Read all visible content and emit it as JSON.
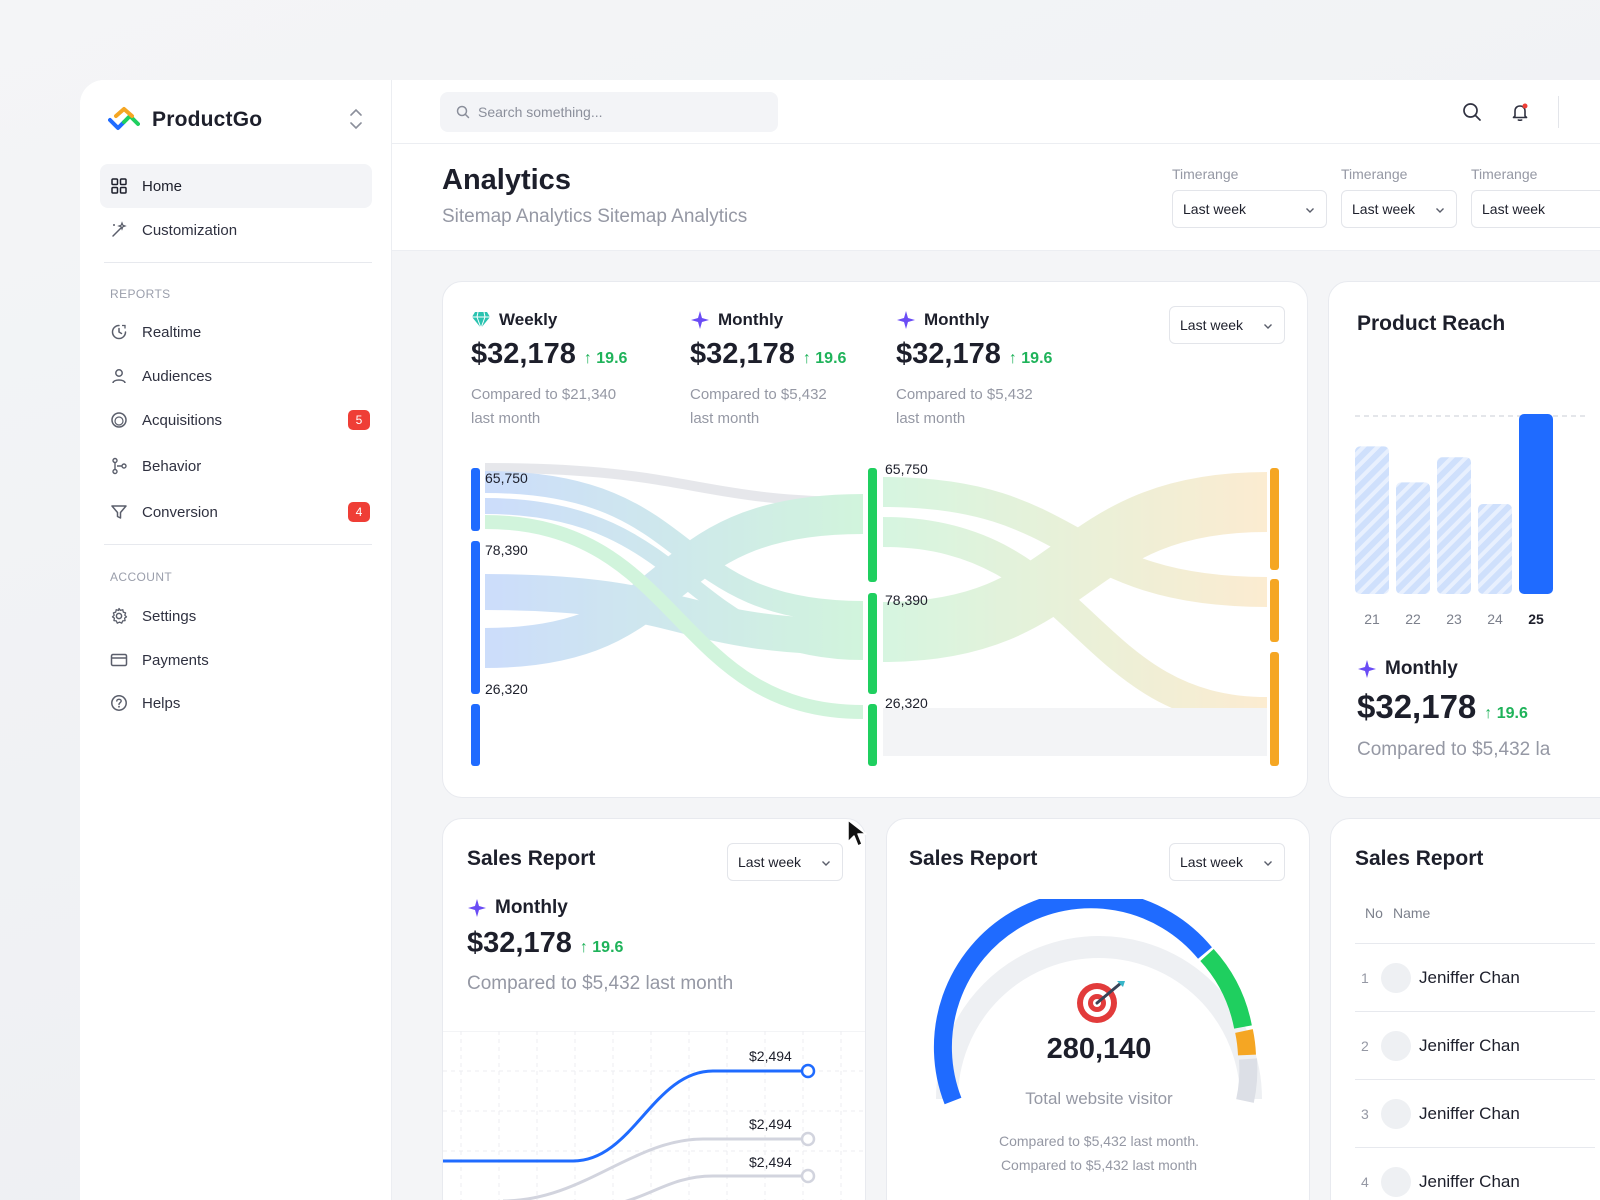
{
  "brand": {
    "name": "ProductGo"
  },
  "sidebar": {
    "main": [
      {
        "label": "Home",
        "active": true,
        "icon": "grid-icon"
      },
      {
        "label": "Customization",
        "icon": "magic-wand-icon"
      }
    ],
    "reports_label": "REPORTS",
    "reports": [
      {
        "label": "Realtime",
        "icon": "realtime-icon"
      },
      {
        "label": "Audiences",
        "icon": "user-icon"
      },
      {
        "label": "Acquisitions",
        "icon": "coin-icon",
        "badge": "5"
      },
      {
        "label": "Behavior",
        "icon": "flow-icon"
      },
      {
        "label": "Conversion",
        "icon": "funnel-icon",
        "badge": "4"
      }
    ],
    "account_label": "ACCOUNT",
    "account": [
      {
        "label": "Settings",
        "icon": "gear-icon"
      },
      {
        "label": "Payments",
        "icon": "card-icon"
      },
      {
        "label": "Helps",
        "icon": "help-icon"
      }
    ]
  },
  "search": {
    "placeholder": "Search something..."
  },
  "header": {
    "title": "Analytics",
    "subtitle": "Sitemap Analytics Sitemap Analytics",
    "timeranges": [
      {
        "label": "Timerange",
        "value": "Last week"
      },
      {
        "label": "Timerange",
        "value": "Last week"
      },
      {
        "label": "Timerange",
        "value": "Last week"
      }
    ]
  },
  "overview": {
    "select": "Last week",
    "kpis": [
      {
        "title": "Weekly",
        "value": "$32,178",
        "delta": "19.6",
        "compare1": "Compared to $21,340",
        "compare2": "last month",
        "icon": "diamond-icon"
      },
      {
        "title": "Monthly",
        "value": "$32,178",
        "delta": "19.6",
        "compare1": "Compared to $5,432",
        "compare2": "last month",
        "icon": "sparkle-icon"
      },
      {
        "title": "Monthly",
        "value": "$32,178",
        "delta": "19.6",
        "compare1": "Compared to $5,432",
        "compare2": "last month",
        "icon": "sparkle-icon"
      }
    ],
    "sankey_labels_left": [
      "65,750",
      "78,390",
      "26,320"
    ],
    "sankey_labels_mid": [
      "65,750",
      "78,390",
      "26,320"
    ]
  },
  "product_reach": {
    "title": "Product Reach",
    "kpi": {
      "title": "Monthly",
      "value": "$32,178",
      "delta": "19.6",
      "compare": "Compared to $5,432 la"
    }
  },
  "chart_data": [
    {
      "type": "bar",
      "categories": [
        "21",
        "22",
        "23",
        "24",
        "25"
      ],
      "values": [
        82,
        62,
        76,
        50,
        100
      ],
      "highlight": "25"
    },
    {
      "type": "line",
      "data_labels": [
        "$2,494",
        "$2,494",
        "$2,494"
      ]
    }
  ],
  "sales_report_1": {
    "title": "Sales Report",
    "select": "Last week",
    "kpi": {
      "title": "Monthly",
      "value": "$32,178",
      "delta": "19.6",
      "compare": "Compared to $5,432 last month"
    }
  },
  "sales_report_2": {
    "title": "Sales Report",
    "select": "Last week",
    "gauge_value": "280,140",
    "gauge_label": "Total website visitor",
    "compare1": "Compared to $5,432 last month.",
    "compare2": "Compared to $5,432 last month"
  },
  "sales_report_3": {
    "title": "Sales Report",
    "col_no": "No",
    "col_name": "Name",
    "rows": [
      {
        "no": "1",
        "name": "Jeniffer Chan"
      },
      {
        "no": "2",
        "name": "Jeniffer Chan"
      },
      {
        "no": "3",
        "name": "Jeniffer Chan"
      },
      {
        "no": "4",
        "name": "Jeniffer Chan"
      }
    ]
  },
  "colors": {
    "accent": "#1f6bff",
    "green": "#1fcf5f",
    "orange": "#f5a623",
    "purple": "#6a4cf5",
    "up": "#1fb35a",
    "badge": "#ef3e36"
  }
}
